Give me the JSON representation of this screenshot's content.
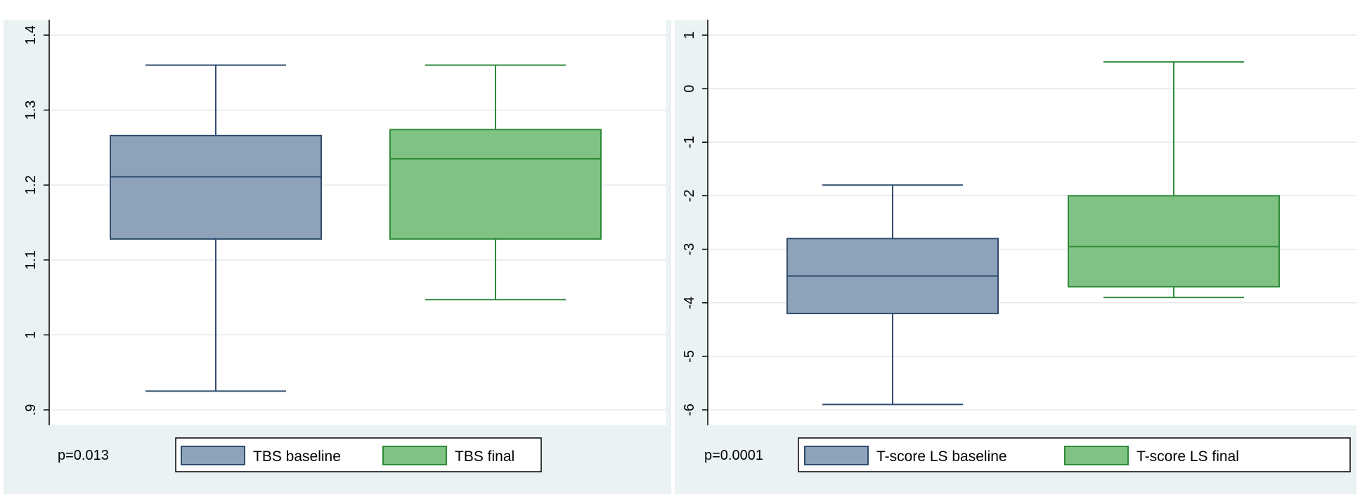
{
  "chart_data": [
    {
      "type": "box",
      "annotation": "p=0.013",
      "ylim": [
        0.9,
        1.4
      ],
      "y_ticks": [
        0.9,
        1.0,
        1.1,
        1.2,
        1.3,
        1.4
      ],
      "y_tick_labels": [
        ".9",
        "1",
        "1.1",
        "1.2",
        "1.3",
        "1.4"
      ],
      "grid": true,
      "legend_position": "bottom",
      "series": [
        {
          "name": "TBS baseline",
          "min": 0.925,
          "q1": 1.128,
          "median": 1.211,
          "q3": 1.266,
          "max": 1.36,
          "fill": "#8ea3b9",
          "stroke": "#2f4d6e"
        },
        {
          "name": "TBS final",
          "min": 1.047,
          "q1": 1.128,
          "median": 1.235,
          "q3": 1.274,
          "max": 1.36,
          "fill": "#80c283",
          "stroke": "#2e8b3a"
        }
      ]
    },
    {
      "type": "box",
      "annotation": "p=0.0001",
      "ylim": [
        -6,
        1
      ],
      "y_ticks": [
        -6,
        -5,
        -4,
        -3,
        -2,
        -1,
        0,
        1
      ],
      "y_tick_labels": [
        "-6",
        "-5",
        "-4",
        "-3",
        "-2",
        "-1",
        "0",
        "1"
      ],
      "grid": true,
      "legend_position": "bottom",
      "series": [
        {
          "name": "T-score LS baseline",
          "min": -5.9,
          "q1": -4.2,
          "median": -3.5,
          "q3": -2.8,
          "max": -1.8,
          "fill": "#8ea3b9",
          "stroke": "#2f4d6e"
        },
        {
          "name": "T-score LS final",
          "min": -3.9,
          "q1": -3.7,
          "median": -2.95,
          "q3": -2.0,
          "max": 0.5,
          "fill": "#80c283",
          "stroke": "#2e8b3a"
        }
      ]
    }
  ]
}
